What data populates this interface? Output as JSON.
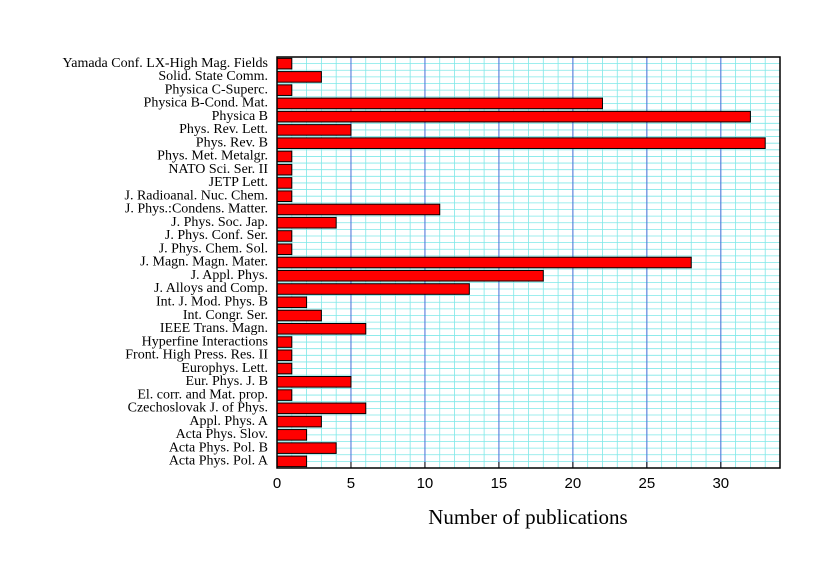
{
  "chart_data": {
    "type": "barh",
    "xlabel": "Number of publications",
    "categories": [
      "Yamada Conf. LX-High Mag. Fields",
      "Solid. State Comm.",
      "Physica C-Superc.",
      "Physica B-Cond. Mat.",
      "Physica B",
      "Phys. Rev. Lett.",
      "Phys. Rev. B",
      "Phys. Met. Metalgr.",
      "NATO Sci. Ser. II",
      "JETP Lett.",
      "J. Radioanal. Nuc. Chem.",
      "J. Phys.:Condens. Matter.",
      "J. Phys. Soc. Jap.",
      "J. Phys. Conf. Ser.",
      "J. Phys. Chem. Sol.",
      "J. Magn. Magn. Mater.",
      "J. Appl. Phys.",
      "J. Alloys and Comp.",
      "Int. J. Mod. Phys. B",
      "Int. Congr. Ser.",
      "IEEE Trans. Magn.",
      "Hyperfine Interactions",
      "Front. High Press. Res. II",
      "Europhys. Lett.",
      "Eur. Phys. J. B",
      "El. corr. and Mat. prop.",
      "Czechoslovak J. of Phys.",
      "Appl. Phys. A",
      "Acta Phys. Slov.",
      "Acta Phys. Pol. B",
      "Acta Phys. Pol. A"
    ],
    "values": [
      1,
      3,
      1,
      22,
      32,
      5,
      33,
      1,
      1,
      1,
      1,
      11,
      4,
      1,
      1,
      28,
      18,
      13,
      2,
      3,
      6,
      1,
      1,
      1,
      5,
      1,
      6,
      3,
      2,
      4,
      2
    ],
    "color": "#ff0000",
    "xlim": [
      0,
      34
    ],
    "xticks": [
      0,
      5,
      10,
      15,
      20,
      25,
      30
    ],
    "grid": true,
    "grid_color": "#4a6fd8",
    "minor_grid_color": "#7fe8e8",
    "xminor_step": 1
  }
}
